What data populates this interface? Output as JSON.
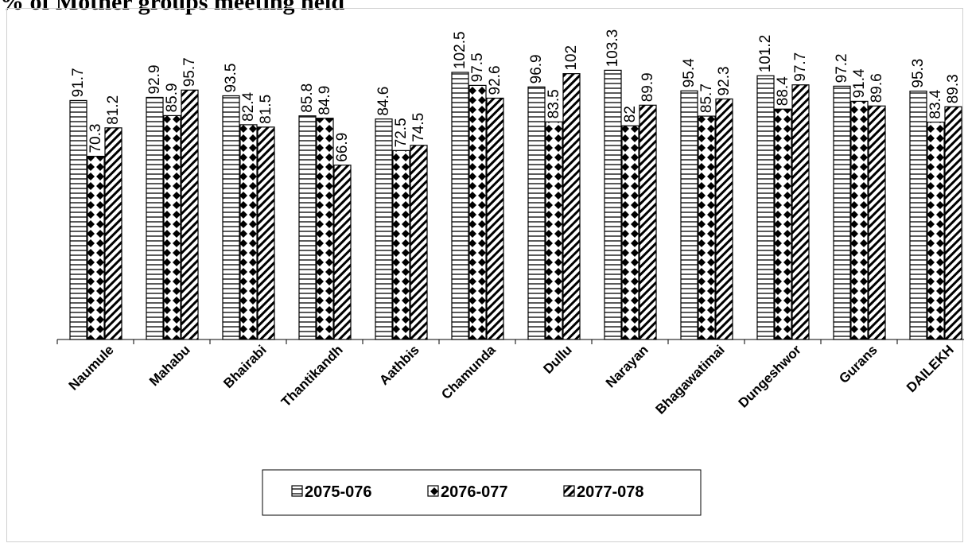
{
  "title": "% of Mother groups meeting held",
  "chart_data": {
    "type": "bar",
    "categories": [
      "Naumule",
      "Mahabu",
      "Bhairabi",
      "Thantikandh",
      "Aathbis",
      "Chamunda",
      "Dullu",
      "Narayan",
      "Bhagawatimai",
      "Dungeshwor",
      "Gurans",
      "DAILEKH"
    ],
    "series": [
      {
        "name": "2075-076",
        "values": [
          91.7,
          92.9,
          93.5,
          85.8,
          84.6,
          102.5,
          96.9,
          103.3,
          95.4,
          101.2,
          97.2,
          95.3
        ],
        "pattern": "horizontal-lines"
      },
      {
        "name": "2076-077",
        "values": [
          70.3,
          85.9,
          82.4,
          84.9,
          72.5,
          97.5,
          83.5,
          82,
          85.7,
          88.4,
          91.4,
          83.4
        ],
        "pattern": "diamonds"
      },
      {
        "name": "2077-078",
        "values": [
          81.2,
          95.7,
          81.5,
          66.9,
          74.5,
          92.6,
          102,
          89.9,
          92.3,
          97.7,
          89.6,
          89.3
        ],
        "pattern": "diagonal-lines"
      }
    ],
    "value_labels": true,
    "legend_position": "bottom",
    "grid": false,
    "ylim": [
      0,
      110
    ],
    "colors": {
      "fill": "#ffffff",
      "stroke": "#000000"
    }
  }
}
